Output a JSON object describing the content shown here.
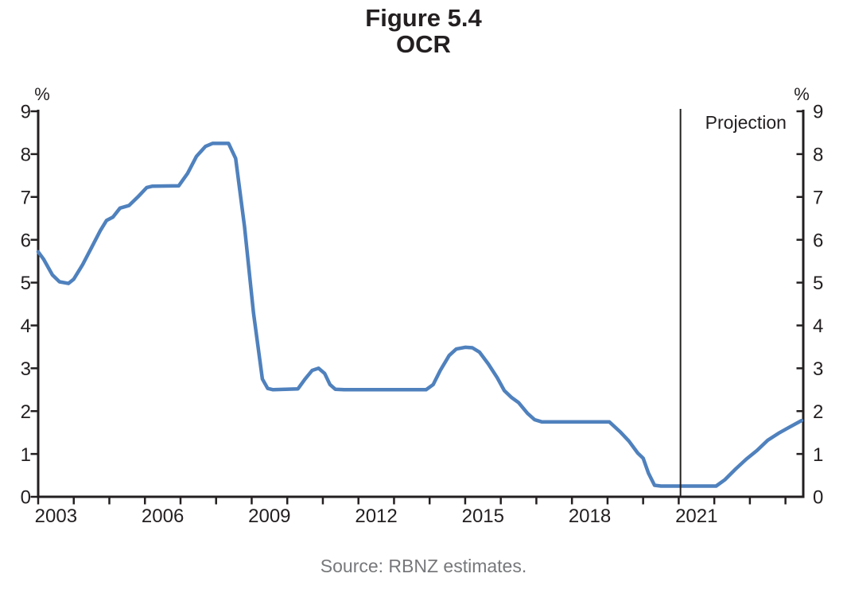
{
  "title": {
    "line1": "Figure 5.4",
    "line2": "OCR"
  },
  "source": "Source: RBNZ estimates.",
  "colors": {
    "line": "#4f81bd",
    "axis": "#231f20",
    "text": "#231f20",
    "source_text": "#77787b"
  },
  "chart_data": {
    "type": "line",
    "title": "OCR",
    "figure_label": "Figure 5.4",
    "y_unit": "%",
    "ylim": [
      0,
      9
    ],
    "yticks": [
      0,
      1,
      2,
      3,
      4,
      5,
      6,
      7,
      8,
      9
    ],
    "xlim": [
      2003,
      2024.5
    ],
    "xtick_interval_years": 1,
    "xtick_label_years": [
      2003,
      2006,
      2009,
      2012,
      2015,
      2018,
      2021
    ],
    "grid": false,
    "legend": "none",
    "dual_y_axis": true,
    "projection": {
      "label": "Projection",
      "start_year": 2021.05
    },
    "series": [
      {
        "name": "OCR",
        "color": "#4f81bd",
        "points": [
          [
            2003.0,
            5.72
          ],
          [
            2003.15,
            5.55
          ],
          [
            2003.4,
            5.18
          ],
          [
            2003.6,
            5.02
          ],
          [
            2003.85,
            4.98
          ],
          [
            2004.0,
            5.08
          ],
          [
            2004.25,
            5.42
          ],
          [
            2004.5,
            5.82
          ],
          [
            2004.75,
            6.22
          ],
          [
            2004.92,
            6.45
          ],
          [
            2005.1,
            6.53
          ],
          [
            2005.3,
            6.74
          ],
          [
            2005.55,
            6.8
          ],
          [
            2005.8,
            7.0
          ],
          [
            2006.05,
            7.22
          ],
          [
            2006.2,
            7.25
          ],
          [
            2006.95,
            7.26
          ],
          [
            2007.2,
            7.55
          ],
          [
            2007.45,
            7.95
          ],
          [
            2007.7,
            8.18
          ],
          [
            2007.9,
            8.25
          ],
          [
            2008.35,
            8.25
          ],
          [
            2008.55,
            7.9
          ],
          [
            2008.8,
            6.3
          ],
          [
            2009.05,
            4.3
          ],
          [
            2009.3,
            2.75
          ],
          [
            2009.45,
            2.53
          ],
          [
            2009.6,
            2.5
          ],
          [
            2010.3,
            2.52
          ],
          [
            2010.5,
            2.75
          ],
          [
            2010.7,
            2.95
          ],
          [
            2010.88,
            3.0
          ],
          [
            2011.05,
            2.88
          ],
          [
            2011.2,
            2.62
          ],
          [
            2011.35,
            2.51
          ],
          [
            2011.6,
            2.5
          ],
          [
            2013.9,
            2.5
          ],
          [
            2014.1,
            2.62
          ],
          [
            2014.3,
            2.95
          ],
          [
            2014.55,
            3.3
          ],
          [
            2014.75,
            3.45
          ],
          [
            2015.0,
            3.49
          ],
          [
            2015.2,
            3.48
          ],
          [
            2015.4,
            3.38
          ],
          [
            2015.65,
            3.1
          ],
          [
            2015.9,
            2.78
          ],
          [
            2016.1,
            2.48
          ],
          [
            2016.3,
            2.32
          ],
          [
            2016.5,
            2.2
          ],
          [
            2016.75,
            1.95
          ],
          [
            2016.95,
            1.8
          ],
          [
            2017.15,
            1.75
          ],
          [
            2019.05,
            1.75
          ],
          [
            2019.35,
            1.52
          ],
          [
            2019.6,
            1.3
          ],
          [
            2019.85,
            1.02
          ],
          [
            2020.0,
            0.9
          ],
          [
            2020.15,
            0.55
          ],
          [
            2020.32,
            0.27
          ],
          [
            2020.5,
            0.25
          ],
          [
            2022.05,
            0.25
          ],
          [
            2022.3,
            0.4
          ],
          [
            2022.6,
            0.65
          ],
          [
            2022.9,
            0.88
          ],
          [
            2023.2,
            1.08
          ],
          [
            2023.5,
            1.32
          ],
          [
            2023.8,
            1.48
          ],
          [
            2024.1,
            1.62
          ],
          [
            2024.45,
            1.78
          ]
        ]
      }
    ]
  }
}
